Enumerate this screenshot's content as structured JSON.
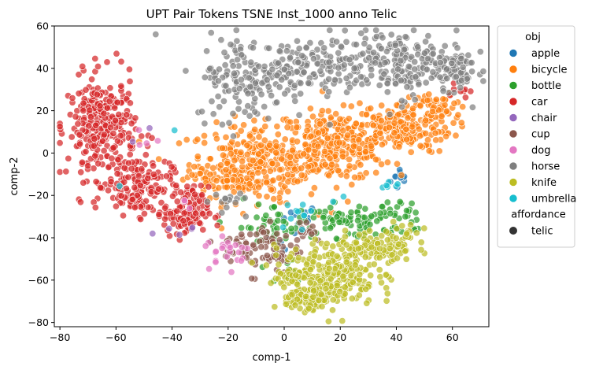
{
  "chart_data": {
    "type": "scatter",
    "title": "UPT Pair Tokens TSNE Inst_1000 anno Telic",
    "xlabel": "comp-1",
    "ylabel": "comp-2",
    "xlim": [
      -82,
      73
    ],
    "ylim": [
      -82,
      60
    ],
    "xticks": [
      -80,
      -60,
      -40,
      -20,
      0,
      20,
      40,
      60
    ],
    "yticks": [
      -80,
      -60,
      -40,
      -20,
      0,
      20,
      40,
      60
    ],
    "grid": false,
    "legend_position": "outside-right",
    "legend": {
      "hue_title": "obj",
      "style_title": "affordance",
      "style_entries": [
        {
          "label": "telic",
          "color": "#333333"
        }
      ]
    },
    "series": [
      {
        "name": "apple",
        "color": "#1f77b4",
        "clusters": [
          {
            "cx": 42,
            "cy": -12,
            "sx": 2,
            "sy": 3,
            "n": 10
          },
          {
            "cx": 5,
            "cy": -30,
            "sx": 4,
            "sy": 3,
            "n": 10
          },
          {
            "cx": -2,
            "cy": -42,
            "sx": 2,
            "sy": 2,
            "n": 5
          }
        ]
      },
      {
        "name": "bicycle",
        "color": "#ff7f0e",
        "clusters": [
          {
            "cx": -10,
            "cy": -5,
            "sx": 12,
            "sy": 9,
            "n": 300
          },
          {
            "cx": 18,
            "cy": 3,
            "sx": 10,
            "sy": 8,
            "n": 280
          },
          {
            "cx": 42,
            "cy": 12,
            "sx": 9,
            "sy": 6,
            "n": 200
          },
          {
            "cx": -22,
            "cy": -12,
            "sx": 5,
            "sy": 4,
            "n": 40
          },
          {
            "cx": 55,
            "cy": 22,
            "sx": 5,
            "sy": 3,
            "n": 40
          }
        ]
      },
      {
        "name": "bottle",
        "color": "#2ca02c",
        "clusters": [
          {
            "cx": 25,
            "cy": -32,
            "sx": 10,
            "sy": 4,
            "n": 90
          },
          {
            "cx": -5,
            "cy": -35,
            "sx": 6,
            "sy": 6,
            "n": 45
          },
          {
            "cx": 42,
            "cy": -28,
            "sx": 3,
            "sy": 3,
            "n": 15
          },
          {
            "cx": 3,
            "cy": -58,
            "sx": 3,
            "sy": 5,
            "n": 10
          }
        ]
      },
      {
        "name": "car",
        "color": "#d62728",
        "clusters": [
          {
            "cx": -65,
            "cy": 12,
            "sx": 6,
            "sy": 12,
            "n": 300
          },
          {
            "cx": -52,
            "cy": -15,
            "sx": 6,
            "sy": 7,
            "n": 150
          },
          {
            "cx": -35,
            "cy": -28,
            "sx": 4,
            "sy": 6,
            "n": 130
          },
          {
            "cx": 62,
            "cy": 30,
            "sx": 2,
            "sy": 2,
            "n": 8
          }
        ]
      },
      {
        "name": "chair",
        "color": "#9467bd",
        "clusters": [
          {
            "cx": -37,
            "cy": -35,
            "sx": 3,
            "sy": 2,
            "n": 5
          },
          {
            "cx": -50,
            "cy": 8,
            "sx": 2,
            "sy": 2,
            "n": 2
          }
        ]
      },
      {
        "name": "cup",
        "color": "#8c564b",
        "clusters": [
          {
            "cx": -8,
            "cy": -45,
            "sx": 7,
            "sy": 6,
            "n": 80
          },
          {
            "cx": 8,
            "cy": -36,
            "sx": 3,
            "sy": 3,
            "n": 15
          }
        ]
      },
      {
        "name": "dog",
        "color": "#e377c2",
        "clusters": [
          {
            "cx": -20,
            "cy": -46,
            "sx": 4,
            "sy": 4,
            "n": 25
          },
          {
            "cx": -48,
            "cy": 5,
            "sx": 2,
            "sy": 3,
            "n": 4
          },
          {
            "cx": -35,
            "cy": -25,
            "sx": 2,
            "sy": 2,
            "n": 3
          }
        ]
      },
      {
        "name": "horse",
        "color": "#7f7f7f",
        "clusters": [
          {
            "cx": -12,
            "cy": 35,
            "sx": 10,
            "sy": 10,
            "n": 150
          },
          {
            "cx": 10,
            "cy": 42,
            "sx": 12,
            "sy": 6,
            "n": 120
          },
          {
            "cx": 40,
            "cy": 42,
            "sx": 12,
            "sy": 8,
            "n": 200
          },
          {
            "cx": 60,
            "cy": 40,
            "sx": 4,
            "sy": 5,
            "n": 60
          },
          {
            "cx": -20,
            "cy": -25,
            "sx": 4,
            "sy": 3,
            "n": 15
          }
        ]
      },
      {
        "name": "knife",
        "color": "#bcbd22",
        "clusters": [
          {
            "cx": 15,
            "cy": -58,
            "sx": 9,
            "sy": 7,
            "n": 280
          },
          {
            "cx": 32,
            "cy": -45,
            "sx": 7,
            "sy": 4,
            "n": 100
          },
          {
            "cx": 8,
            "cy": -70,
            "sx": 4,
            "sy": 3,
            "n": 60
          },
          {
            "cx": 43,
            "cy": -38,
            "sx": 4,
            "sy": 3,
            "n": 20
          }
        ]
      },
      {
        "name": "umbrella",
        "color": "#17becf",
        "clusters": [
          {
            "cx": 38,
            "cy": -15,
            "sx": 2,
            "sy": 3,
            "n": 6
          },
          {
            "cx": 5,
            "cy": -28,
            "sx": 4,
            "sy": 3,
            "n": 10
          },
          {
            "cx": -40,
            "cy": 10,
            "sx": 1,
            "sy": 1,
            "n": 1
          },
          {
            "cx": -58,
            "cy": -13,
            "sx": 1,
            "sy": 1,
            "n": 1
          },
          {
            "cx": 20,
            "cy": -20,
            "sx": 2,
            "sy": 2,
            "n": 2
          }
        ]
      }
    ]
  }
}
